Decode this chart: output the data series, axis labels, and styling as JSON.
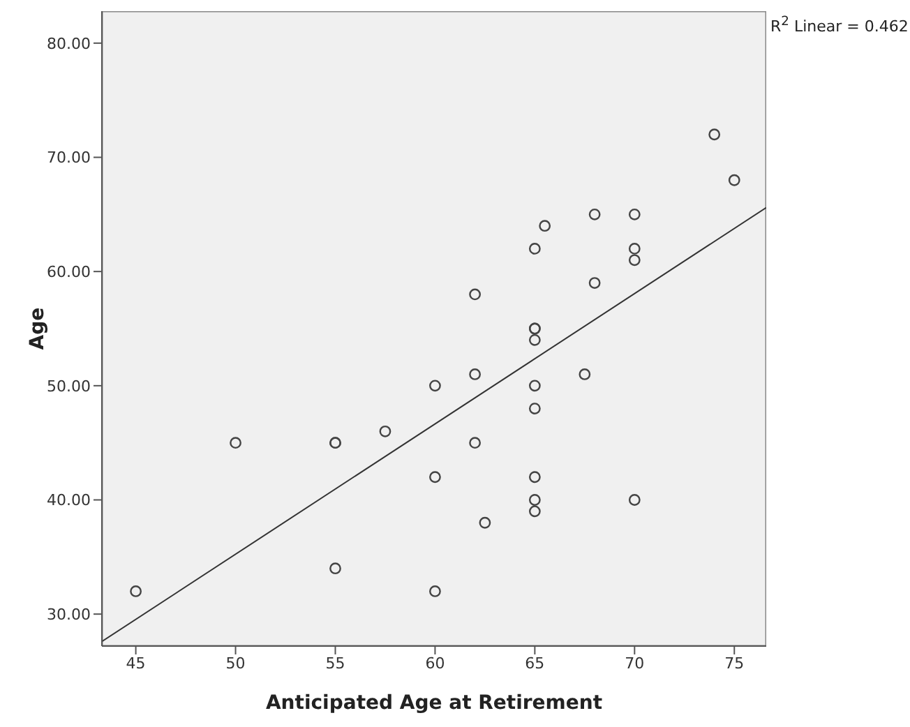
{
  "chart_data": {
    "type": "scatter",
    "xlabel": "Anticipated Age at Retirement",
    "ylabel": "Age",
    "annotations": [
      "R$^{2}$ Linear = 0.462"
    ],
    "series": [
      {
        "color": "#444444",
        "x": [
          45,
          50,
          55,
          55,
          57.5,
          60,
          60,
          55,
          60,
          74,
          75,
          68,
          70,
          65.5,
          65,
          70,
          70,
          68,
          62,
          65,
          65,
          65,
          62,
          67.5,
          65,
          65,
          62,
          65,
          65,
          70,
          65,
          62.5
        ],
        "values": [
          32,
          45,
          45,
          45,
          46,
          50,
          42,
          34,
          32,
          72,
          68,
          65,
          65,
          64,
          62,
          62,
          61,
          59,
          58,
          55,
          55,
          54,
          51,
          51,
          50,
          48,
          45,
          42,
          40,
          40,
          39,
          38
        ]
      },
      {
        "type": "line",
        "color": "#333333",
        "x": [
          43.3,
          76.6
        ],
        "values": [
          27.6,
          65.6
        ],
        "marker": "none"
      }
    ],
    "xlim": [
      43.3,
      76.6
    ],
    "xticks": [
      45,
      50,
      55,
      60,
      65,
      70,
      75
    ],
    "ylim": [
      27.2,
      82.8
    ],
    "yticks": [
      {
        "value": 30,
        "label": "30.00"
      },
      {
        "value": 40,
        "label": "40.00"
      },
      {
        "value": 50,
        "label": "50.00"
      },
      {
        "value": 60,
        "label": "60.00"
      },
      {
        "value": 70,
        "label": "70.00"
      },
      {
        "value": 80,
        "label": "80.00"
      }
    ],
    "grid": false,
    "marker": "circle"
  }
}
